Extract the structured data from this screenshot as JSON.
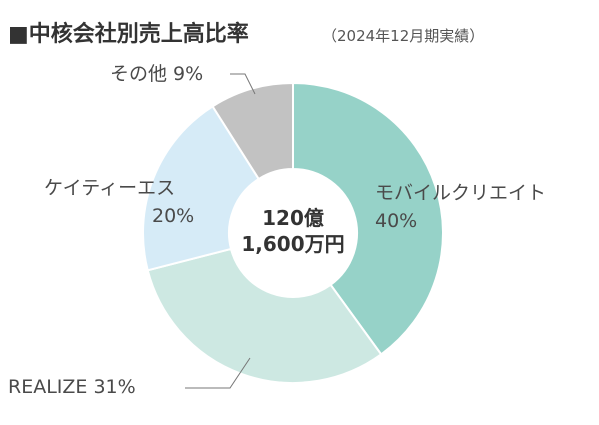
{
  "chart_data": {
    "type": "pie",
    "variant": "donut",
    "title": "■中核会社別売上高比率",
    "subtitle": "（2024年12月期実績）",
    "center_label": {
      "line1": "120億",
      "line2": "1,600万円"
    },
    "slices": [
      {
        "name": "モバイルクリエイト",
        "value": 40,
        "label_name": "モバイルクリエイト",
        "label_value": "40%",
        "color": "#96d2c8"
      },
      {
        "name": "REALIZE",
        "value": 31,
        "label_text": "REALIZE 31%",
        "color": "#cde8e2"
      },
      {
        "name": "ケイティーエス",
        "value": 20,
        "label_name": "ケイティーエス",
        "label_value": "20%",
        "color": "#d6ebf7"
      },
      {
        "name": "その他",
        "value": 9,
        "label_text": "その他 9%",
        "color": "#c2c2c2"
      }
    ]
  }
}
